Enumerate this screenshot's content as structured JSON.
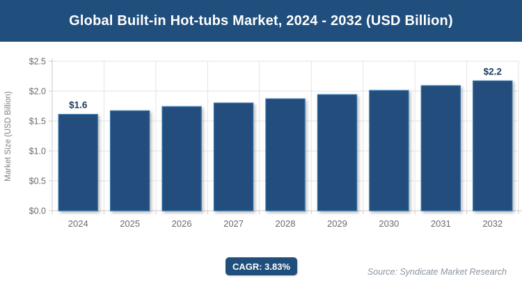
{
  "header": {
    "title": "Global Built-in Hot-tubs Market, 2024 - 2032 (USD Billion)"
  },
  "chart_data": {
    "type": "bar",
    "title": "Global Built-in Hot-tubs Market, 2024 - 2032 (USD Billion)",
    "categories": [
      "2024",
      "2025",
      "2026",
      "2027",
      "2028",
      "2029",
      "2030",
      "2031",
      "2032"
    ],
    "values": [
      1.61,
      1.67,
      1.74,
      1.8,
      1.87,
      1.94,
      2.01,
      2.09,
      2.17
    ],
    "point_labels": {
      "2024": "$1.6",
      "2032": "$2.2"
    },
    "xlabel": "",
    "ylabel": "Market Size (USD Billion)",
    "ylim": [
      0,
      2.5
    ],
    "ytick_step": 0.5,
    "ytick_prefix": "$",
    "grid": true,
    "legend": "none",
    "colors": {
      "bar_fill": "#204E7D",
      "bar_stroke": "#2E6DA4",
      "grid_line": "#e3e3e3",
      "axis_line": "#c9c9c9",
      "tick_label": "#6a6a6a",
      "axis_title": "#808080",
      "value_label": "#1C3C61"
    }
  },
  "footer": {
    "cagr_label": "CAGR: 3.83%",
    "source": "Source: Syndicate Market Research"
  }
}
